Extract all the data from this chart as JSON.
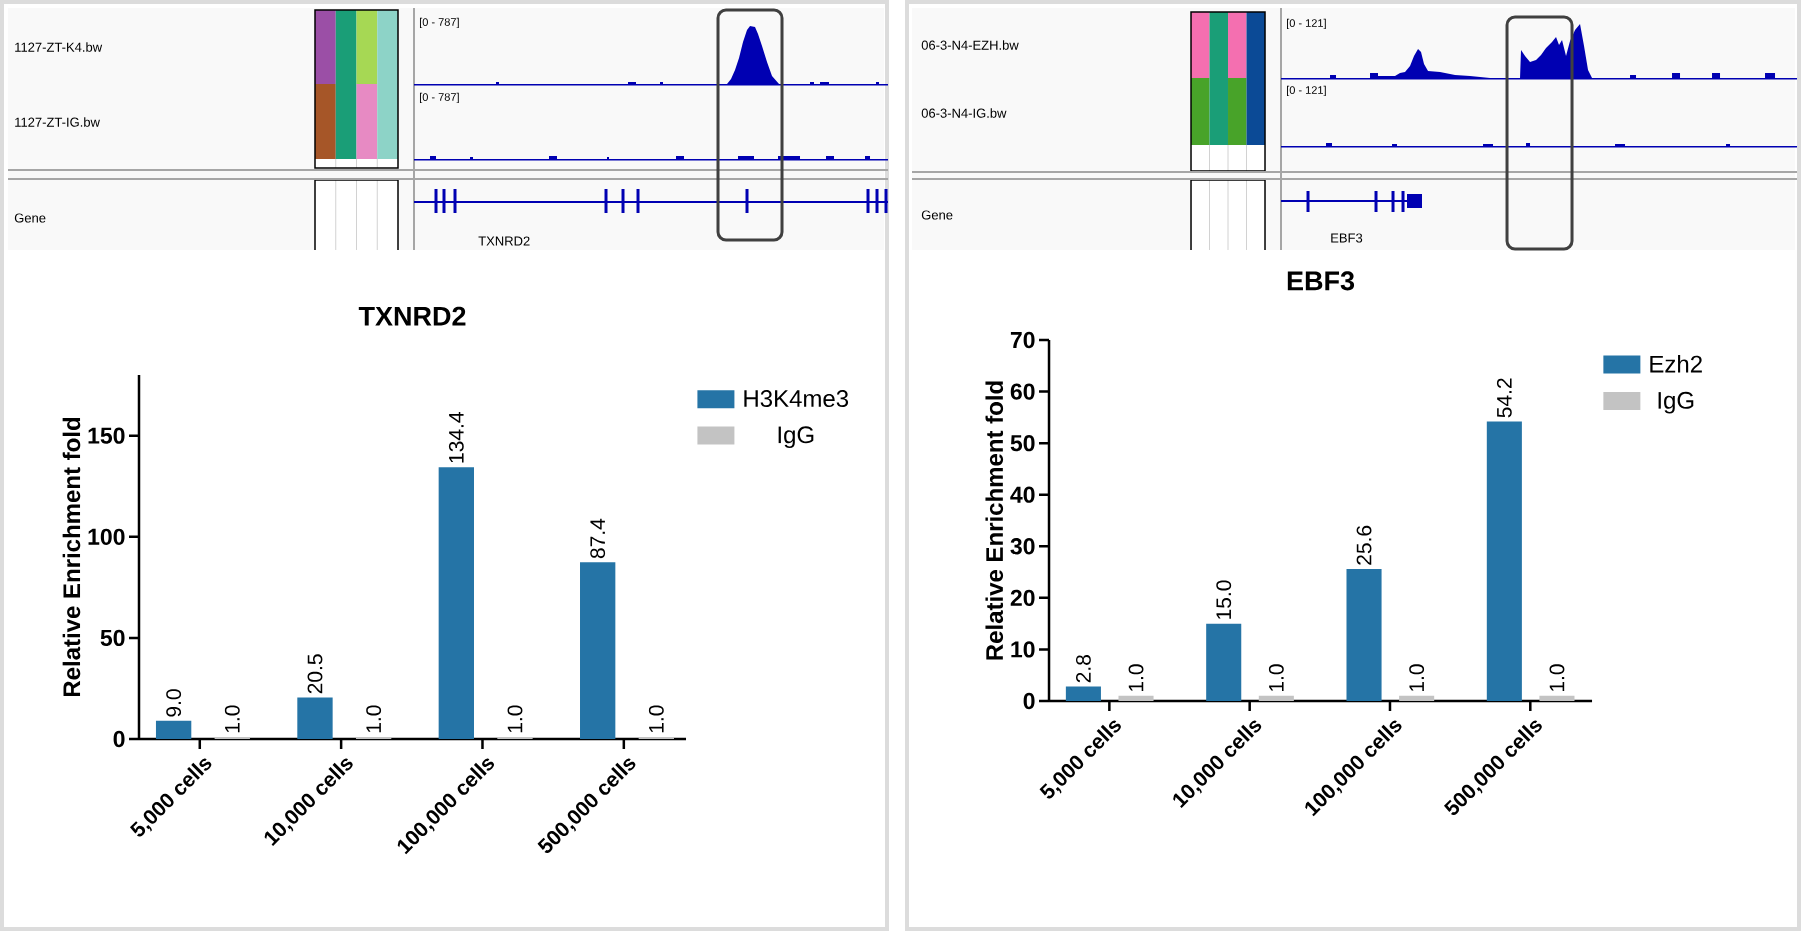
{
  "chart_data": [
    {
      "type": "other",
      "annotations": [
        "1127-ZT-K4.bw",
        "1127-ZT-IG.bw",
        "Gene",
        "[0 - 787]",
        "[0 - 787]",
        "TXNRD2"
      ]
    },
    {
      "type": "bar",
      "title": "TXNRD2",
      "ylabel": "Relative Enrichment fold",
      "categories": [
        "5,000 cells",
        "10,000 cells",
        "100,000 cells",
        "500,000 cells"
      ],
      "series": [
        {
          "name": "H3K4me3",
          "color": "#2574a6",
          "values": [
            9.0,
            20.5,
            134.4,
            87.4
          ],
          "value_labels": [
            "9.0",
            "20.5",
            "134.4",
            "87.4"
          ]
        },
        {
          "name": "IgG",
          "color": "#c3c3c3",
          "values": [
            1.0,
            1.0,
            1.0,
            1.0
          ],
          "value_labels": [
            "1.0",
            "1.0",
            "1.0",
            "1.0"
          ]
        }
      ],
      "ylim": [
        0,
        180
      ],
      "yticks": [
        0,
        50,
        100,
        150
      ],
      "legend": "top right"
    },
    {
      "type": "other",
      "annotations": [
        "06-3-N4-EZH.bw",
        "06-3-N4-IG.bw",
        "Gene",
        "[0 - 121]",
        "[0 - 121]",
        "EBF3"
      ]
    },
    {
      "type": "bar",
      "title": "EBF3",
      "ylabel": "Relative Enrichment fold",
      "categories": [
        "5,000 cells",
        "10,000 cells",
        "100,000 cells",
        "500,000 cells"
      ],
      "series": [
        {
          "name": "Ezh2",
          "color": "#2574a6",
          "values": [
            2.8,
            15.0,
            25.6,
            54.2
          ],
          "value_labels": [
            "2.8",
            "15.0",
            "25.6",
            "54.2"
          ]
        },
        {
          "name": "IgG",
          "color": "#c3c3c3",
          "values": [
            1.0,
            1.0,
            1.0,
            1.0
          ],
          "value_labels": [
            "1.0",
            "1.0",
            "1.0",
            "1.0"
          ]
        }
      ],
      "ylim": [
        0,
        70
      ],
      "yticks": [
        0,
        10,
        20,
        30,
        40,
        50,
        60,
        70
      ],
      "legend": "top right"
    }
  ]
}
